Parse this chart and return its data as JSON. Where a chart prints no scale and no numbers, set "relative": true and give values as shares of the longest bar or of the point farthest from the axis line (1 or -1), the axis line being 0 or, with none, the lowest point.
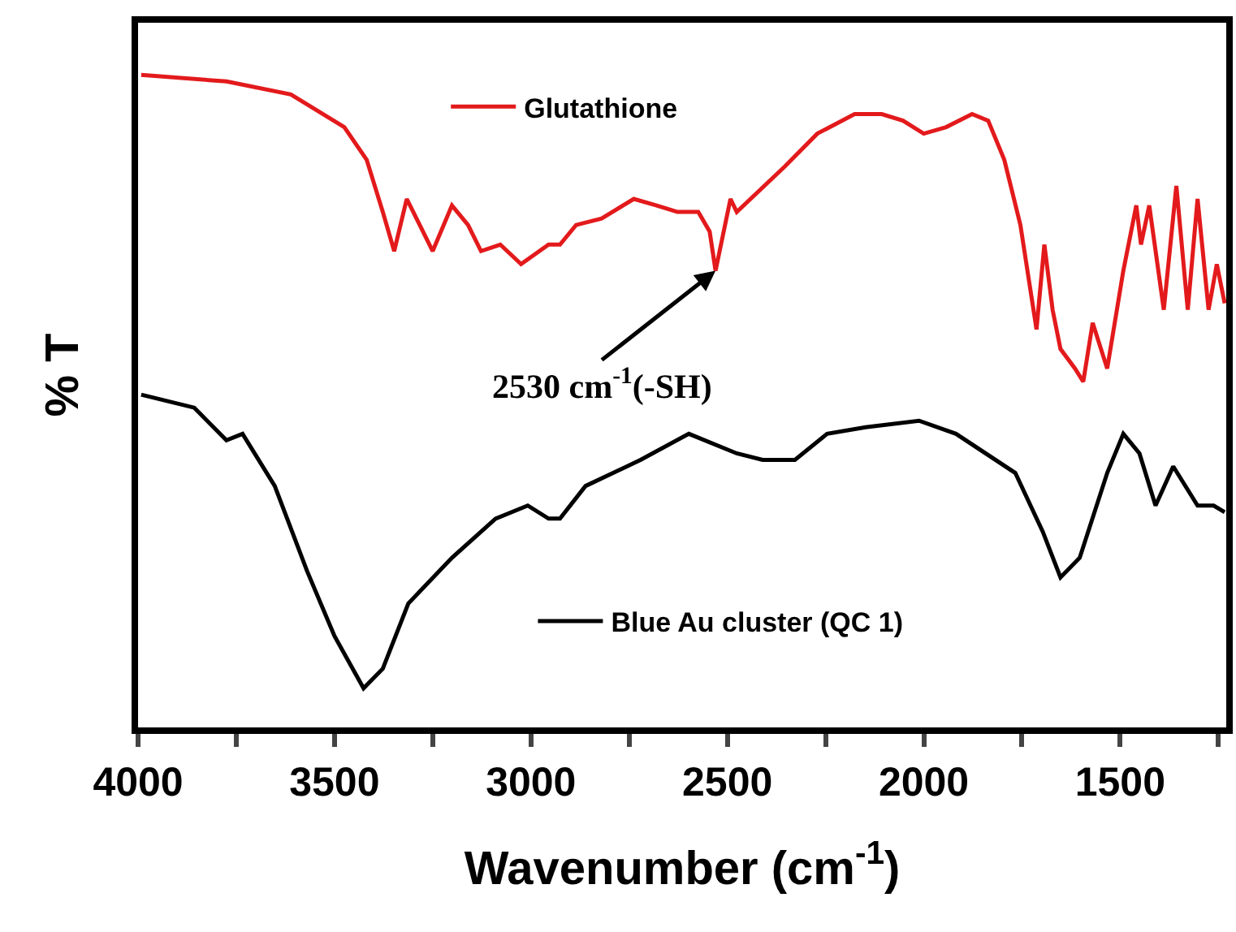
{
  "chart_data": {
    "type": "line",
    "relative": true,
    "xlabel": "Wavenumber (cm$^{-1}$)",
    "ylabel": "% T",
    "xlim": [
      4000,
      1230
    ],
    "xticks": [
      4000,
      {
        "value": 3750,
        "label": null
      },
      3500,
      {
        "value": 3250,
        "label": null
      },
      3000,
      {
        "value": 2750,
        "label": null
      },
      2500,
      {
        "value": 2250,
        "label": null
      },
      2000,
      {
        "value": 1750,
        "label": null
      },
      1500,
      {
        "value": 1250,
        "label": null
      }
    ],
    "legend": "top",
    "marker": "none",
    "line_style": "solid",
    "annotations": [
      {
        "text": "2530 cm$^{-1}$(-SH)",
        "x": 2530,
        "y": 0.7
      }
    ],
    "series": [
      {
        "name": "Glutathione",
        "color": "#e31a1c",
        "x": [
          3992,
          3775,
          3611,
          3475,
          3418,
          3377,
          3348,
          3316,
          3283,
          3250,
          3201,
          3160,
          3127,
          3078,
          3025,
          2955,
          2926,
          2885,
          2820,
          2738,
          2680,
          2627,
          2574,
          2545,
          2530,
          2492,
          2476,
          2353,
          2271,
          2176,
          2107,
          2053,
          2000,
          1943,
          1877,
          1836,
          1795,
          1754,
          1713,
          1693,
          1672,
          1652,
          1615,
          1594,
          1570,
          1533,
          1492,
          1459,
          1447,
          1426,
          1389,
          1357,
          1328,
          1303,
          1275,
          1254,
          1234
        ],
        "values": [
          1.0,
          0.99,
          0.97,
          0.92,
          0.87,
          0.79,
          0.73,
          0.81,
          0.77,
          0.73,
          0.8,
          0.77,
          0.73,
          0.74,
          0.71,
          0.74,
          0.74,
          0.77,
          0.78,
          0.81,
          0.8,
          0.79,
          0.79,
          0.76,
          0.7,
          0.81,
          0.79,
          0.86,
          0.91,
          0.94,
          0.94,
          0.93,
          0.91,
          0.92,
          0.94,
          0.93,
          0.87,
          0.77,
          0.61,
          0.74,
          0.64,
          0.58,
          0.55,
          0.53,
          0.62,
          0.55,
          0.7,
          0.8,
          0.74,
          0.8,
          0.64,
          0.83,
          0.64,
          0.81,
          0.64,
          0.71,
          0.65
        ]
      },
      {
        "name": "Blue Au cluster (QC 1)",
        "color": "#000000",
        "x": [
          3992,
          3857,
          3775,
          3734,
          3652,
          3570,
          3500,
          3426,
          3377,
          3312,
          3201,
          3090,
          3008,
          2955,
          2926,
          2861,
          2721,
          2598,
          2476,
          2410,
          2328,
          2246,
          2148,
          2012,
          1918,
          1767,
          1697,
          1652,
          1603,
          1533,
          1492,
          1451,
          1410,
          1365,
          1303,
          1262,
          1234
        ],
        "values": [
          0.51,
          0.49,
          0.44,
          0.45,
          0.37,
          0.24,
          0.14,
          0.06,
          0.09,
          0.19,
          0.26,
          0.32,
          0.34,
          0.32,
          0.32,
          0.37,
          0.41,
          0.45,
          0.42,
          0.41,
          0.41,
          0.45,
          0.46,
          0.47,
          0.45,
          0.39,
          0.3,
          0.23,
          0.26,
          0.39,
          0.45,
          0.42,
          0.34,
          0.4,
          0.34,
          0.34,
          0.33
        ]
      }
    ]
  }
}
